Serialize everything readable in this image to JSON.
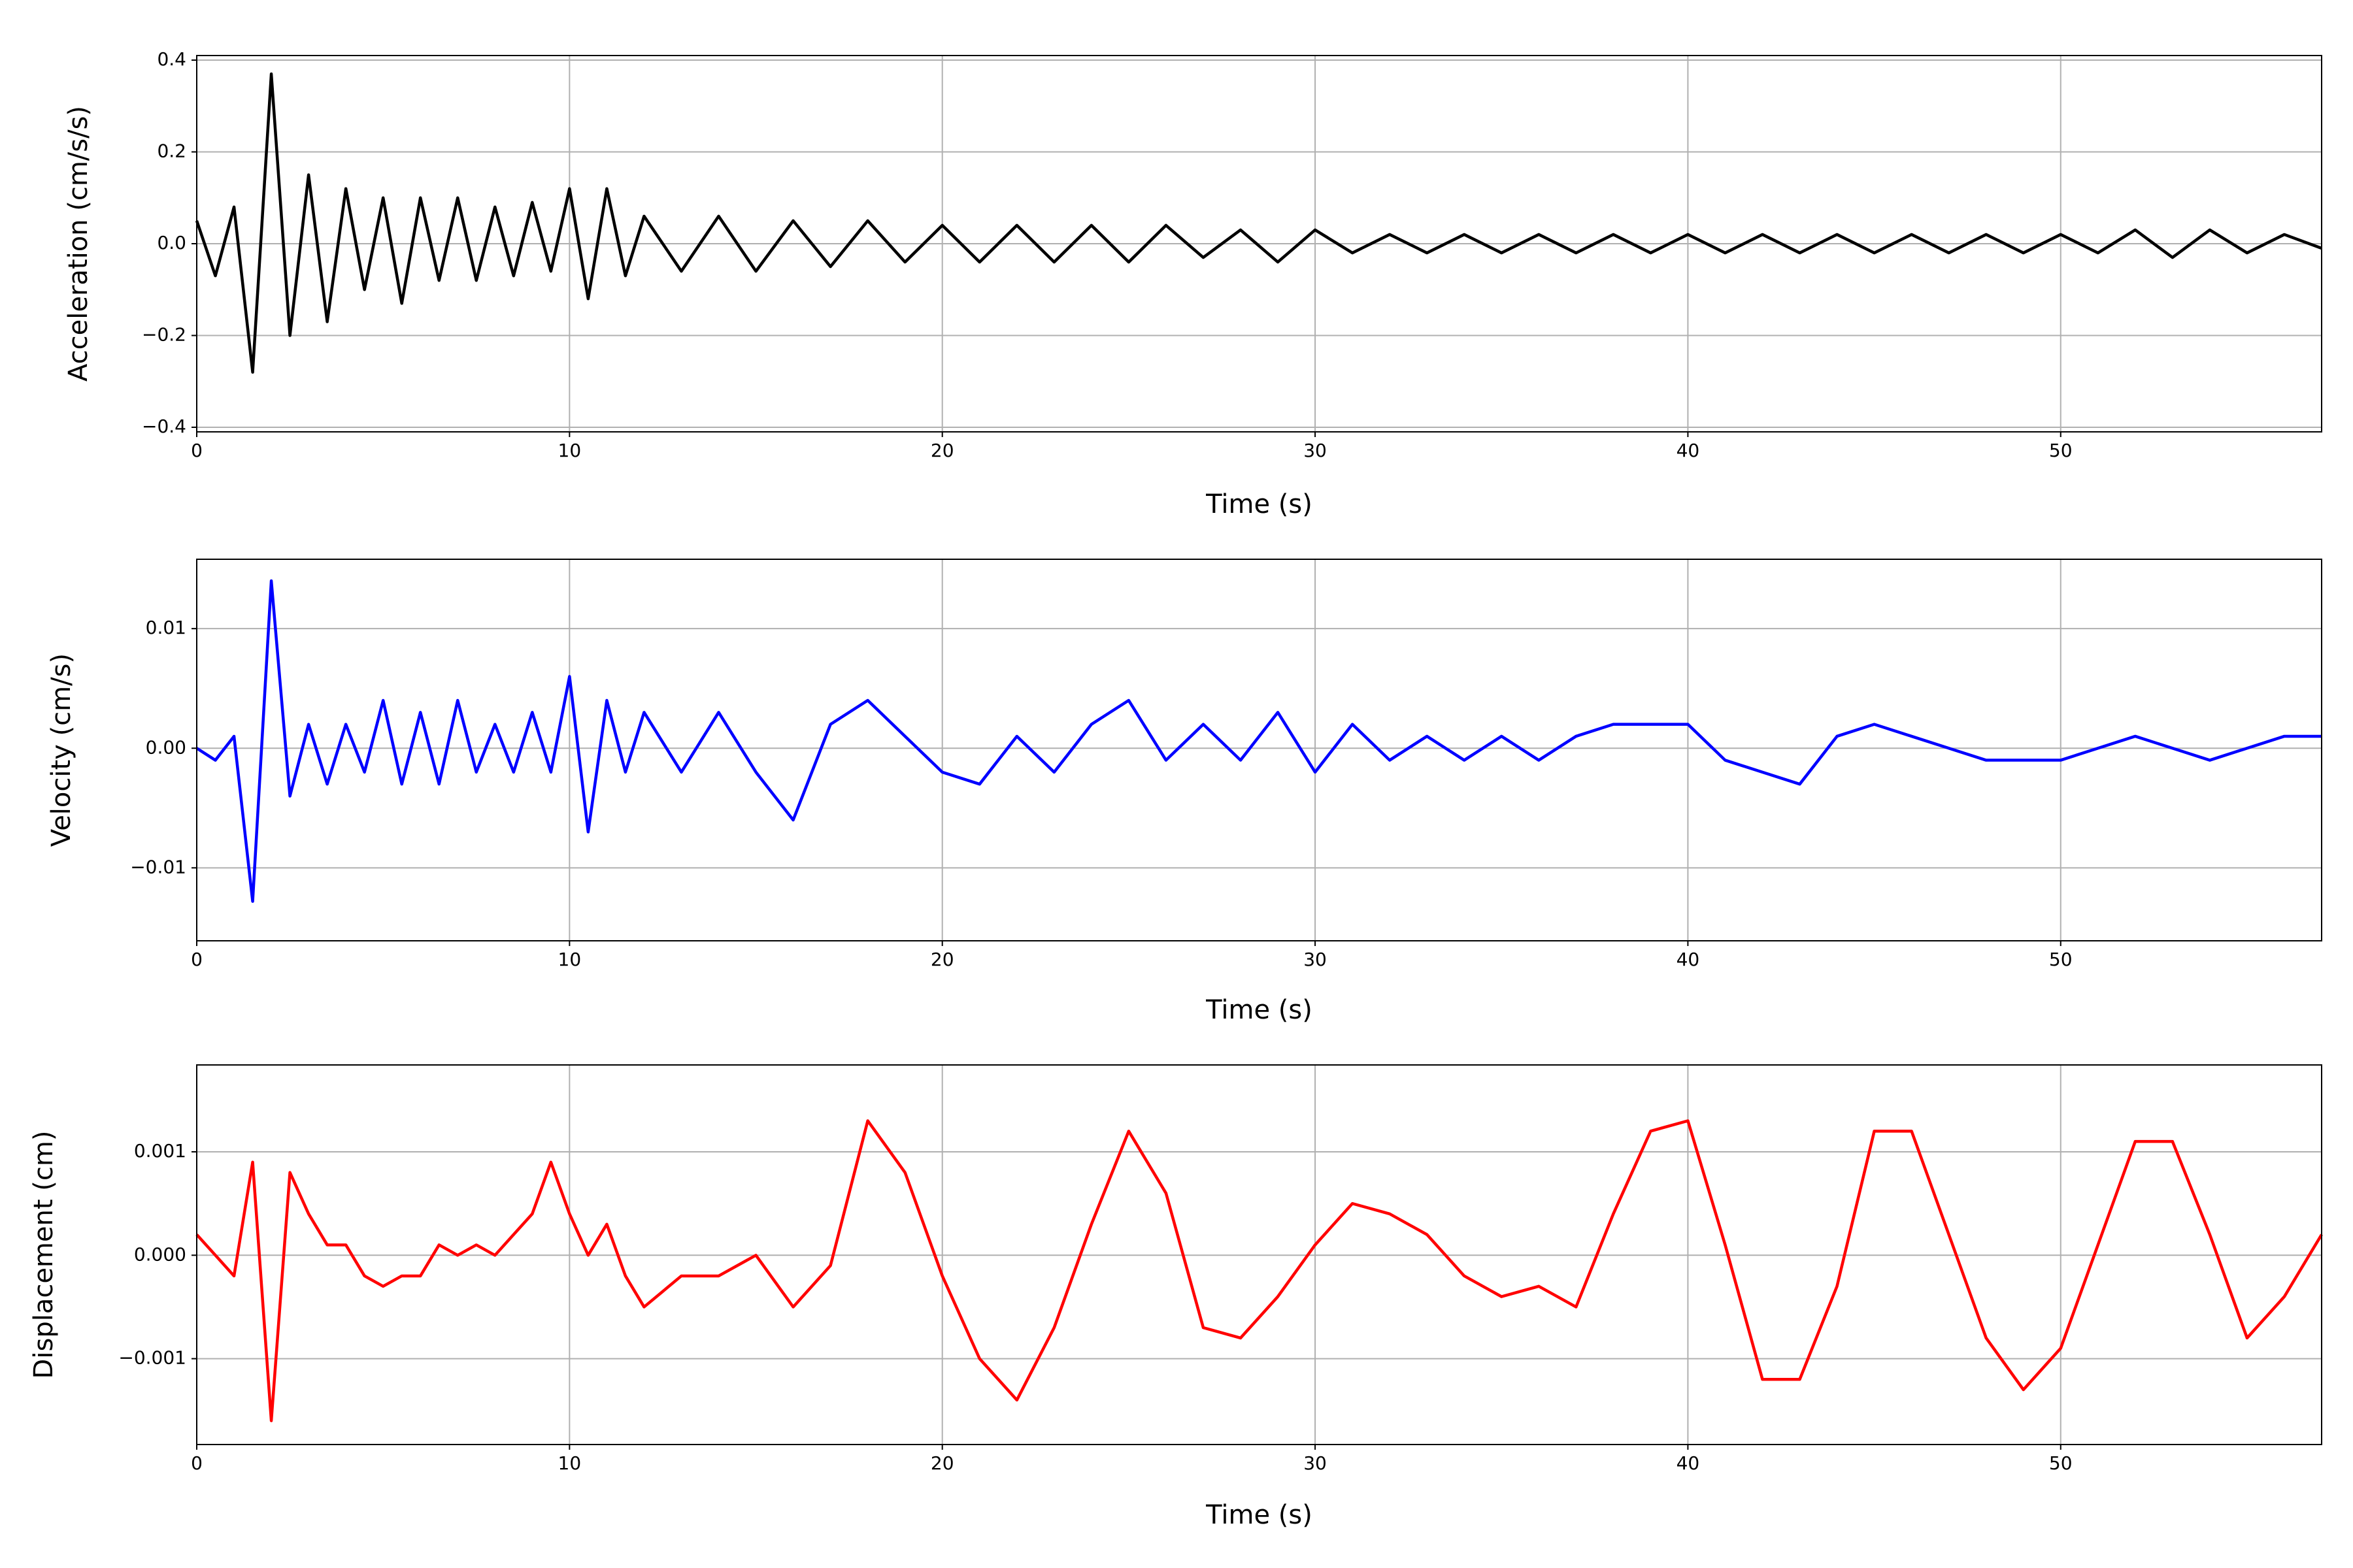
{
  "chart_data": [
    {
      "type": "line",
      "xlabel": "Time (s)",
      "ylabel": "Acceleration (cm/s/s)",
      "grid": true,
      "xlim": [
        0,
        57
      ],
      "xticks": [
        0,
        10,
        20,
        30,
        40,
        50
      ],
      "ylim": [
        -0.41,
        0.41
      ],
      "yticks": [
        {
          "value": -0.4,
          "label": "−0.4"
        },
        {
          "value": -0.2,
          "label": "−0.2"
        },
        {
          "value": 0,
          "label": "0.0"
        },
        0.2,
        0.4
      ],
      "x": [
        0,
        0.5,
        1,
        1.5,
        2,
        2.5,
        3,
        3.5,
        4,
        4.5,
        5,
        5.5,
        6,
        6.5,
        7,
        7.5,
        8,
        8.5,
        9,
        9.5,
        10,
        10.5,
        11,
        11.5,
        12,
        13,
        14,
        15,
        16,
        17,
        18,
        19,
        20,
        21,
        22,
        23,
        24,
        25,
        26,
        27,
        28,
        29,
        30,
        31,
        32,
        33,
        34,
        35,
        36,
        37,
        38,
        39,
        40,
        41,
        42,
        43,
        44,
        45,
        46,
        47,
        48,
        49,
        50,
        51,
        52,
        53,
        54,
        55,
        56,
        57
      ],
      "series": [
        {
          "color": "#000000",
          "values": [
            0.05,
            -0.07,
            0.08,
            -0.28,
            0.37,
            -0.2,
            0.15,
            -0.17,
            0.12,
            -0.1,
            0.1,
            -0.13,
            0.1,
            -0.08,
            0.1,
            -0.08,
            0.08,
            -0.07,
            0.09,
            -0.06,
            0.12,
            -0.12,
            0.12,
            -0.07,
            0.06,
            -0.06,
            0.06,
            -0.06,
            0.05,
            -0.05,
            0.05,
            -0.04,
            0.04,
            -0.04,
            0.04,
            -0.04,
            0.04,
            -0.04,
            0.04,
            -0.03,
            0.03,
            -0.04,
            0.03,
            -0.02,
            0.02,
            -0.02,
            0.02,
            -0.02,
            0.02,
            -0.02,
            0.02,
            -0.02,
            0.02,
            -0.02,
            0.02,
            -0.02,
            0.02,
            -0.02,
            0.02,
            -0.02,
            0.02,
            -0.02,
            0.02,
            -0.02,
            0.03,
            -0.03,
            0.03,
            -0.02,
            0.02,
            -0.01
          ]
        }
      ]
    },
    {
      "type": "line",
      "xlabel": "Time (s)",
      "ylabel": "Velocity (cm/s)",
      "grid": true,
      "xlim": [
        0,
        57
      ],
      "xticks": [
        0,
        10,
        20,
        30,
        40,
        50
      ],
      "ylim": [
        -0.0161,
        0.0158
      ],
      "yticks": [
        {
          "value": -0.01,
          "label": "−0.01"
        },
        {
          "value": 0,
          "label": "0.00"
        },
        0.01
      ],
      "x": [
        0,
        0.5,
        1,
        1.5,
        2,
        2.5,
        3,
        3.5,
        4,
        4.5,
        5,
        5.5,
        6,
        6.5,
        7,
        7.5,
        8,
        8.5,
        9,
        9.5,
        10,
        10.5,
        11,
        11.5,
        12,
        13,
        14,
        15,
        16,
        17,
        18,
        19,
        20,
        21,
        22,
        23,
        24,
        25,
        26,
        27,
        28,
        29,
        30,
        31,
        32,
        33,
        34,
        35,
        36,
        37,
        38,
        39,
        40,
        41,
        42,
        43,
        44,
        45,
        46,
        47,
        48,
        49,
        50,
        51,
        52,
        53,
        54,
        55,
        56,
        57
      ],
      "series": [
        {
          "color": "#0000ff",
          "values": [
            0,
            -0.001,
            0.001,
            -0.0128,
            0.014,
            -0.004,
            0.002,
            -0.003,
            0.002,
            -0.002,
            0.004,
            -0.003,
            0.003,
            -0.003,
            0.004,
            -0.002,
            0.002,
            -0.002,
            0.003,
            -0.002,
            0.006,
            -0.007,
            0.004,
            -0.002,
            0.003,
            -0.002,
            0.003,
            -0.002,
            -0.006,
            0.002,
            0.004,
            0.001,
            -0.002,
            -0.003,
            0.001,
            -0.002,
            0.002,
            0.004,
            -0.001,
            0.002,
            -0.001,
            0.003,
            -0.002,
            0.002,
            -0.001,
            0.001,
            -0.001,
            0.001,
            -0.001,
            0.001,
            0.002,
            0.002,
            0.002,
            -0.001,
            -0.002,
            -0.003,
            0.001,
            0.002,
            0.001,
            0,
            -0.001,
            -0.001,
            -0.001,
            0,
            0.001,
            0,
            -0.001,
            0,
            0.001,
            0.001
          ]
        }
      ]
    },
    {
      "type": "line",
      "xlabel": "Time (s)",
      "ylabel": "Displacement (cm)",
      "grid": true,
      "xlim": [
        0,
        57
      ],
      "xticks": [
        0,
        10,
        20,
        30,
        40,
        50
      ],
      "ylim": [
        -0.00183,
        0.00184
      ],
      "yticks": [
        {
          "value": -0.001,
          "label": "−0.001"
        },
        {
          "value": 0,
          "label": "0.000"
        },
        0.001
      ],
      "x": [
        0,
        0.5,
        1,
        1.5,
        2,
        2.5,
        3,
        3.5,
        4,
        4.5,
        5,
        5.5,
        6,
        6.5,
        7,
        7.5,
        8,
        8.5,
        9,
        9.5,
        10,
        10.5,
        11,
        11.5,
        12,
        13,
        14,
        15,
        16,
        17,
        18,
        19,
        20,
        21,
        22,
        23,
        24,
        25,
        26,
        27,
        28,
        29,
        30,
        31,
        32,
        33,
        34,
        35,
        36,
        37,
        38,
        39,
        40,
        41,
        42,
        43,
        44,
        45,
        46,
        47,
        48,
        49,
        50,
        51,
        52,
        53,
        54,
        55,
        56,
        57
      ],
      "series": [
        {
          "color": "#ff0000",
          "values": [
            0.0002,
            0,
            -0.0002,
            0.0009,
            -0.0016,
            0.0008,
            0.0004,
            0.0001,
            0.0001,
            -0.0002,
            -0.0003,
            -0.0002,
            -0.0002,
            0.0001,
            0,
            0.0001,
            0,
            0.0002,
            0.0004,
            0.0009,
            0.0004,
            0,
            0.0003,
            -0.0002,
            -0.0005,
            -0.0002,
            -0.0002,
            0,
            -0.0005,
            -0.0001,
            0.0013,
            0.0008,
            -0.0002,
            -0.001,
            -0.0014,
            -0.0007,
            0.0003,
            0.0012,
            0.0006,
            -0.0007,
            -0.0008,
            -0.0004,
            0.0001,
            0.0005,
            0.0004,
            0.0002,
            -0.0002,
            -0.0004,
            -0.0003,
            -0.0005,
            0.0004,
            0.0012,
            0.0013,
            0.0001,
            -0.0012,
            -0.0012,
            -0.0003,
            0.0012,
            0.0012,
            0.0002,
            -0.0008,
            -0.0013,
            -0.0009,
            0.0001,
            0.0011,
            0.0011,
            0.0002,
            -0.0008,
            -0.0004,
            0.0002
          ]
        }
      ]
    }
  ]
}
